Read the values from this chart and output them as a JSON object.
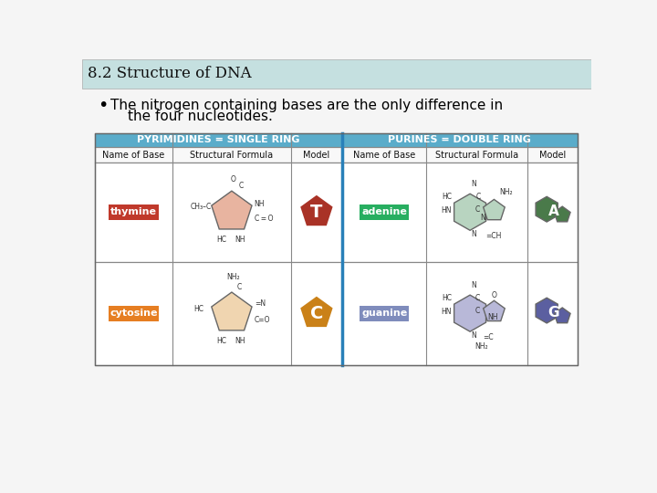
{
  "title": "8.2 Structure of DNA",
  "title_bg": "#c5e0e0",
  "bullet_text_line1": "The nitrogen containing bases are the only difference in",
  "bullet_text_line2": "the four nucleotides.",
  "bg_color": "#f5f5f5",
  "header1_text": "PYRIMIDINES = SINGLE RING",
  "header2_text": "PURINES = DOUBLE RING",
  "header_bg": "#5aacca",
  "thymine_label_bg": "#c0392b",
  "cytosine_label_bg": "#e67e22",
  "adenine_label_bg": "#27ae60",
  "guanine_label_bg": "#7f8cbc",
  "T_color": "#a93226",
  "C_color": "#ca8118",
  "A_color": "#4a7a4a",
  "G_color": "#5b5fa0",
  "thymine_ring_color": "#e8b4a0",
  "cytosine_ring_color": "#f0d5b0",
  "adenine_ring_color": "#b8d4c0",
  "guanine_ring_color": "#b8b8d8",
  "divider_color": "#2980b9",
  "table_line_color": "#888888",
  "text_color": "#333333"
}
